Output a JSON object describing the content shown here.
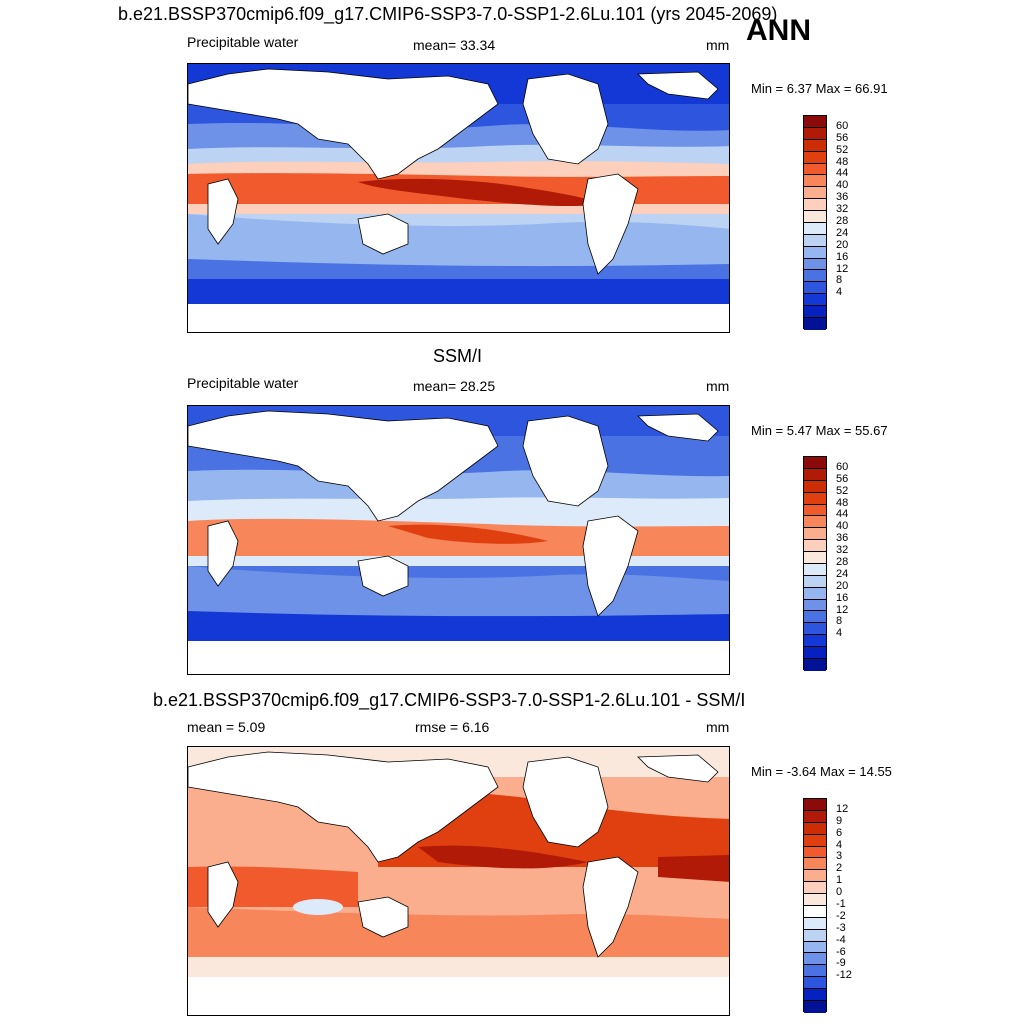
{
  "season": "ANN",
  "panels": [
    {
      "title": "b.e21.BSSP370cmip6.f09_g17.CMIP6-SSP3-7.0-SSP1-2.6Lu.101 (yrs 2045-2069)",
      "left_label": "Precipitable water",
      "center_label": "mean=  33.34",
      "units": "mm",
      "minmax": "Min =   6.37 Max =  66.91",
      "levels": [
        "60",
        "56",
        "52",
        "48",
        "44",
        "40",
        "36",
        "32",
        "28",
        "24",
        "20",
        "16",
        "12",
        "8",
        "4"
      ]
    },
    {
      "title": "SSM/I",
      "left_label": "Precipitable water",
      "center_label": "mean=  28.25",
      "units": "mm",
      "minmax": "Min =   5.47 Max =  55.67",
      "levels": [
        "60",
        "56",
        "52",
        "48",
        "44",
        "40",
        "36",
        "32",
        "28",
        "24",
        "20",
        "16",
        "12",
        "8",
        "4"
      ]
    },
    {
      "title": "b.e21.BSSP370cmip6.f09_g17.CMIP6-SSP3-7.0-SSP1-2.6Lu.101 - SSM/I",
      "left_label": "mean =    5.09",
      "center_label": "rmse =    6.16",
      "units": "mm",
      "minmax": "Min =  -3.64 Max =  14.55",
      "levels": [
        "12",
        "9",
        "6",
        "4",
        "3",
        "2",
        "1",
        "0",
        "-1",
        "-2",
        "-3",
        "-4",
        "-6",
        "-9",
        "-12"
      ]
    }
  ],
  "colors": {
    "absolute": [
      "#8c0a0a",
      "#b01a06",
      "#cc2d05",
      "#e04010",
      "#f05a2c",
      "#f7865b",
      "#fbae8e",
      "#fdd0bd",
      "#fbe8dd",
      "#ddeaf9",
      "#bcd3f4",
      "#95b6ee",
      "#6d92e7",
      "#4a72e3",
      "#2d55dd",
      "#1438d6",
      "#0720c0",
      "#021296"
    ],
    "difference": [
      "#8c0a0a",
      "#b01a06",
      "#cc2d05",
      "#e04010",
      "#f05a2c",
      "#f7865b",
      "#fbae8e",
      "#fdd0bd",
      "#fbe8dd",
      "#ffffff",
      "#ddeaf9",
      "#bcd3f4",
      "#95b6ee",
      "#6d92e7",
      "#4a72e3",
      "#2d55dd",
      "#0720c0",
      "#021296"
    ]
  }
}
